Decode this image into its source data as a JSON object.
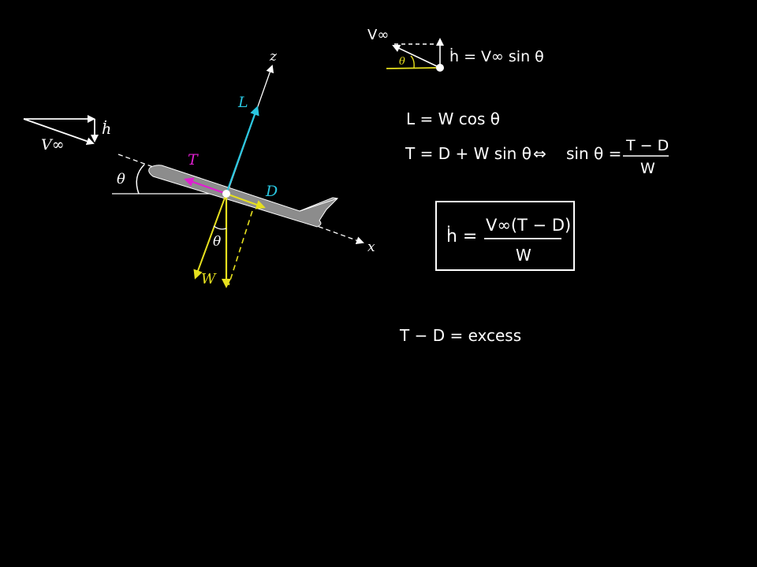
{
  "colors": {
    "background": "#000000",
    "chalk": "#ffffff",
    "lift": "#29c6e0",
    "thrust": "#e01fd0",
    "weight": "#e6e01e",
    "aircraft": "#8c8c8c"
  },
  "diagram": {
    "axis_x": "x",
    "axis_z": "z",
    "lift": "L",
    "thrust": "T",
    "drag": "D",
    "weight": "W",
    "angle": "θ",
    "angle_weight": "θ",
    "velocity": "V∞",
    "hdot": "ḣ"
  },
  "inset": {
    "velocity": "V∞",
    "angle": "θ",
    "equation": "ḣ = V∞ sin θ"
  },
  "equations": {
    "lift_eq": "L = W cos θ",
    "thrust_eq": "T = D + W sin θ",
    "iff": "⇔",
    "sin_lhs": "sin θ =",
    "sin_num": "T − D",
    "sin_den": "W",
    "boxed_lhs": "ḣ =",
    "boxed_num": "V∞(T − D)",
    "boxed_den": "W",
    "excess": "T − D = excess"
  }
}
